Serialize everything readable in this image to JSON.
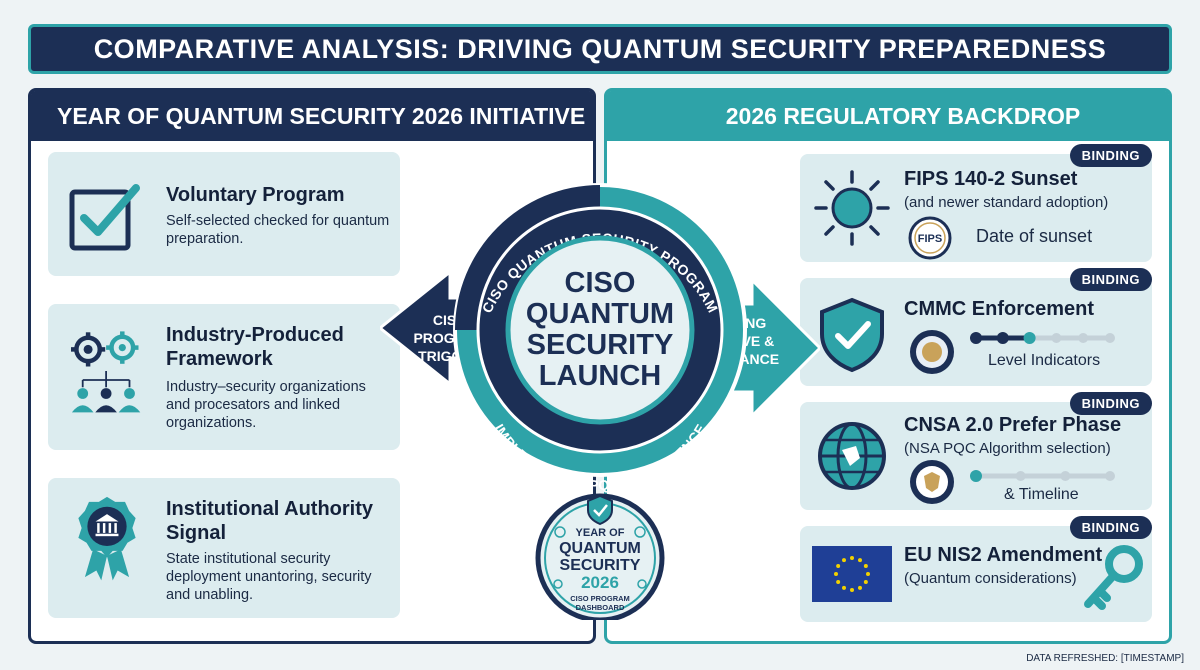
{
  "title": "COMPARATIVE ANALYSIS: DRIVING QUANTUM SECURITY PREPAREDNESS",
  "left_panel": {
    "heading": "YEAR OF QUANTUM SECURITY 2026 INITIATIVE",
    "cards": [
      {
        "title": "Voluntary Program",
        "desc": "Self-selected checked for quantum preparation.",
        "icon": "checkbox-icon"
      },
      {
        "title_line1": "Industry-Produced",
        "title_line2": "Framework",
        "desc": "Industry–security organizations and procesators and linked organizations.",
        "icon": "gears-people-icon"
      },
      {
        "title_line1": "Institutional Authority",
        "title_line2": "Signal",
        "desc": "State institutional security deployment unantoring, security and unabling.",
        "icon": "institution-ribbon-icon"
      }
    ]
  },
  "right_panel": {
    "heading": "2026 REGULATORY BACKDROP",
    "cards": [
      {
        "badge": "BINDING",
        "title": "FIPS 140-2 Sunset",
        "sub": "(and newer standard adoption)",
        "seal": "FIPS",
        "note": "Date of sunset",
        "icon": "sun-icon"
      },
      {
        "badge": "BINDING",
        "title": "CMMC Enforcement",
        "note": "Level Indicators",
        "icon": "shield-check-icon",
        "level": 3,
        "levels_total": 6
      },
      {
        "badge": "BINDING",
        "title": "CNSA 2.0 Prefer Phase",
        "sub": "(NSA PQC Algorithm selection)",
        "note": "& Timeline",
        "icon": "globe-icon",
        "level": 1,
        "levels_total": 4
      },
      {
        "badge": "BINDING",
        "title": "EU NIS2 Amendment",
        "sub": "(Quantum considerations)",
        "icon": "key-icon"
      }
    ]
  },
  "hub": {
    "center_line1": "CISO",
    "center_line2": "QUANTUM",
    "center_line3": "SECURITY",
    "center_line4": "LAUNCH",
    "ring_top": "CISO QUANTUM SECURITY PROGRAM",
    "ring_bottom": "IMPLEMENTING PQC & RESILIENCE",
    "arrow_left_line1": "CISO",
    "arrow_left_line2": "PROGRAM",
    "arrow_left_line3": "TRIGGER",
    "arrow_right_line1": "ALIGNING",
    "arrow_right_line2": "INITIATIVE &",
    "arrow_right_line3": "COMPLIANCE"
  },
  "dashboard": {
    "line1": "YEAR OF",
    "line2": "QUANTUM",
    "line3": "SECURITY",
    "line4": "2026",
    "line5": "CISO PROGRAM",
    "line6": "DASHBOARD"
  },
  "footer": "DATA REFRESHED: [TIMESTAMP]",
  "colors": {
    "navy": "#1c2f55",
    "teal": "#2ea3a8",
    "card": "#dcecef"
  }
}
